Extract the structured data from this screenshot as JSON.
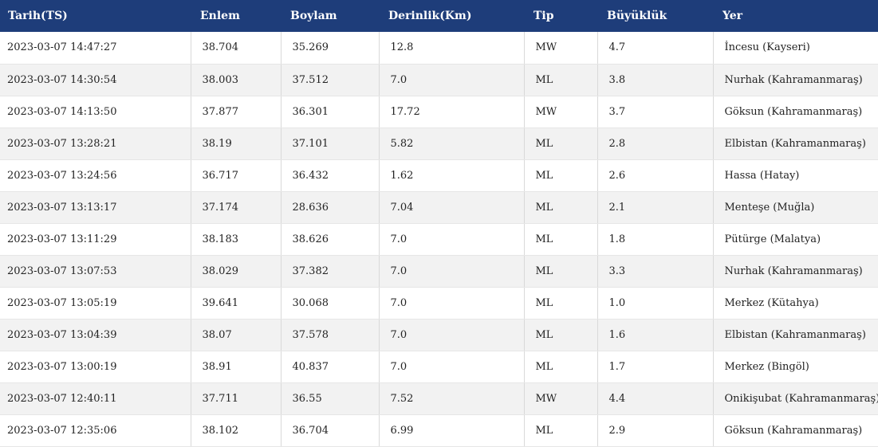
{
  "colors": {
    "header_bg": "#1e3d7a",
    "header_text": "#ffffff",
    "row_alt_bg": "#f2f2f2",
    "row_bg": "#ffffff"
  },
  "table": {
    "columns": [
      "Tarih(TS)",
      "Enlem",
      "Boylam",
      "Derinlik(Km)",
      "Tip",
      "Büyüklük",
      "Yer"
    ],
    "rows": [
      [
        "2023-03-07 14:47:27",
        "38.704",
        "35.269",
        "12.8",
        "MW",
        "4.7",
        "İncesu (Kayseri)"
      ],
      [
        "2023-03-07 14:30:54",
        "38.003",
        "37.512",
        "7.0",
        "ML",
        "3.8",
        "Nurhak (Kahramanmaraş)"
      ],
      [
        "2023-03-07 14:13:50",
        "37.877",
        "36.301",
        "17.72",
        "MW",
        "3.7",
        "Göksun (Kahramanmaraş)"
      ],
      [
        "2023-03-07 13:28:21",
        "38.19",
        "37.101",
        "5.82",
        "ML",
        "2.8",
        "Elbistan (Kahramanmaraş)"
      ],
      [
        "2023-03-07 13:24:56",
        "36.717",
        "36.432",
        "1.62",
        "ML",
        "2.6",
        "Hassa (Hatay)"
      ],
      [
        "2023-03-07 13:13:17",
        "37.174",
        "28.636",
        "7.04",
        "ML",
        "2.1",
        "Menteşe (Muğla)"
      ],
      [
        "2023-03-07 13:11:29",
        "38.183",
        "38.626",
        "7.0",
        "ML",
        "1.8",
        "Pütürge (Malatya)"
      ],
      [
        "2023-03-07 13:07:53",
        "38.029",
        "37.382",
        "7.0",
        "ML",
        "3.3",
        "Nurhak (Kahramanmaraş)"
      ],
      [
        "2023-03-07 13:05:19",
        "39.641",
        "30.068",
        "7.0",
        "ML",
        "1.0",
        "Merkez (Kütahya)"
      ],
      [
        "2023-03-07 13:04:39",
        "38.07",
        "37.578",
        "7.0",
        "ML",
        "1.6",
        "Elbistan (Kahramanmaraş)"
      ],
      [
        "2023-03-07 13:00:19",
        "38.91",
        "40.837",
        "7.0",
        "ML",
        "1.7",
        "Merkez (Bingöl)"
      ],
      [
        "2023-03-07 12:40:11",
        "37.711",
        "36.55",
        "7.52",
        "MW",
        "4.4",
        "Onikişubat (Kahramanmaraş)"
      ],
      [
        "2023-03-07 12:35:06",
        "38.102",
        "36.704",
        "6.99",
        "ML",
        "2.9",
        "Göksun (Kahramanmaraş)"
      ]
    ]
  }
}
